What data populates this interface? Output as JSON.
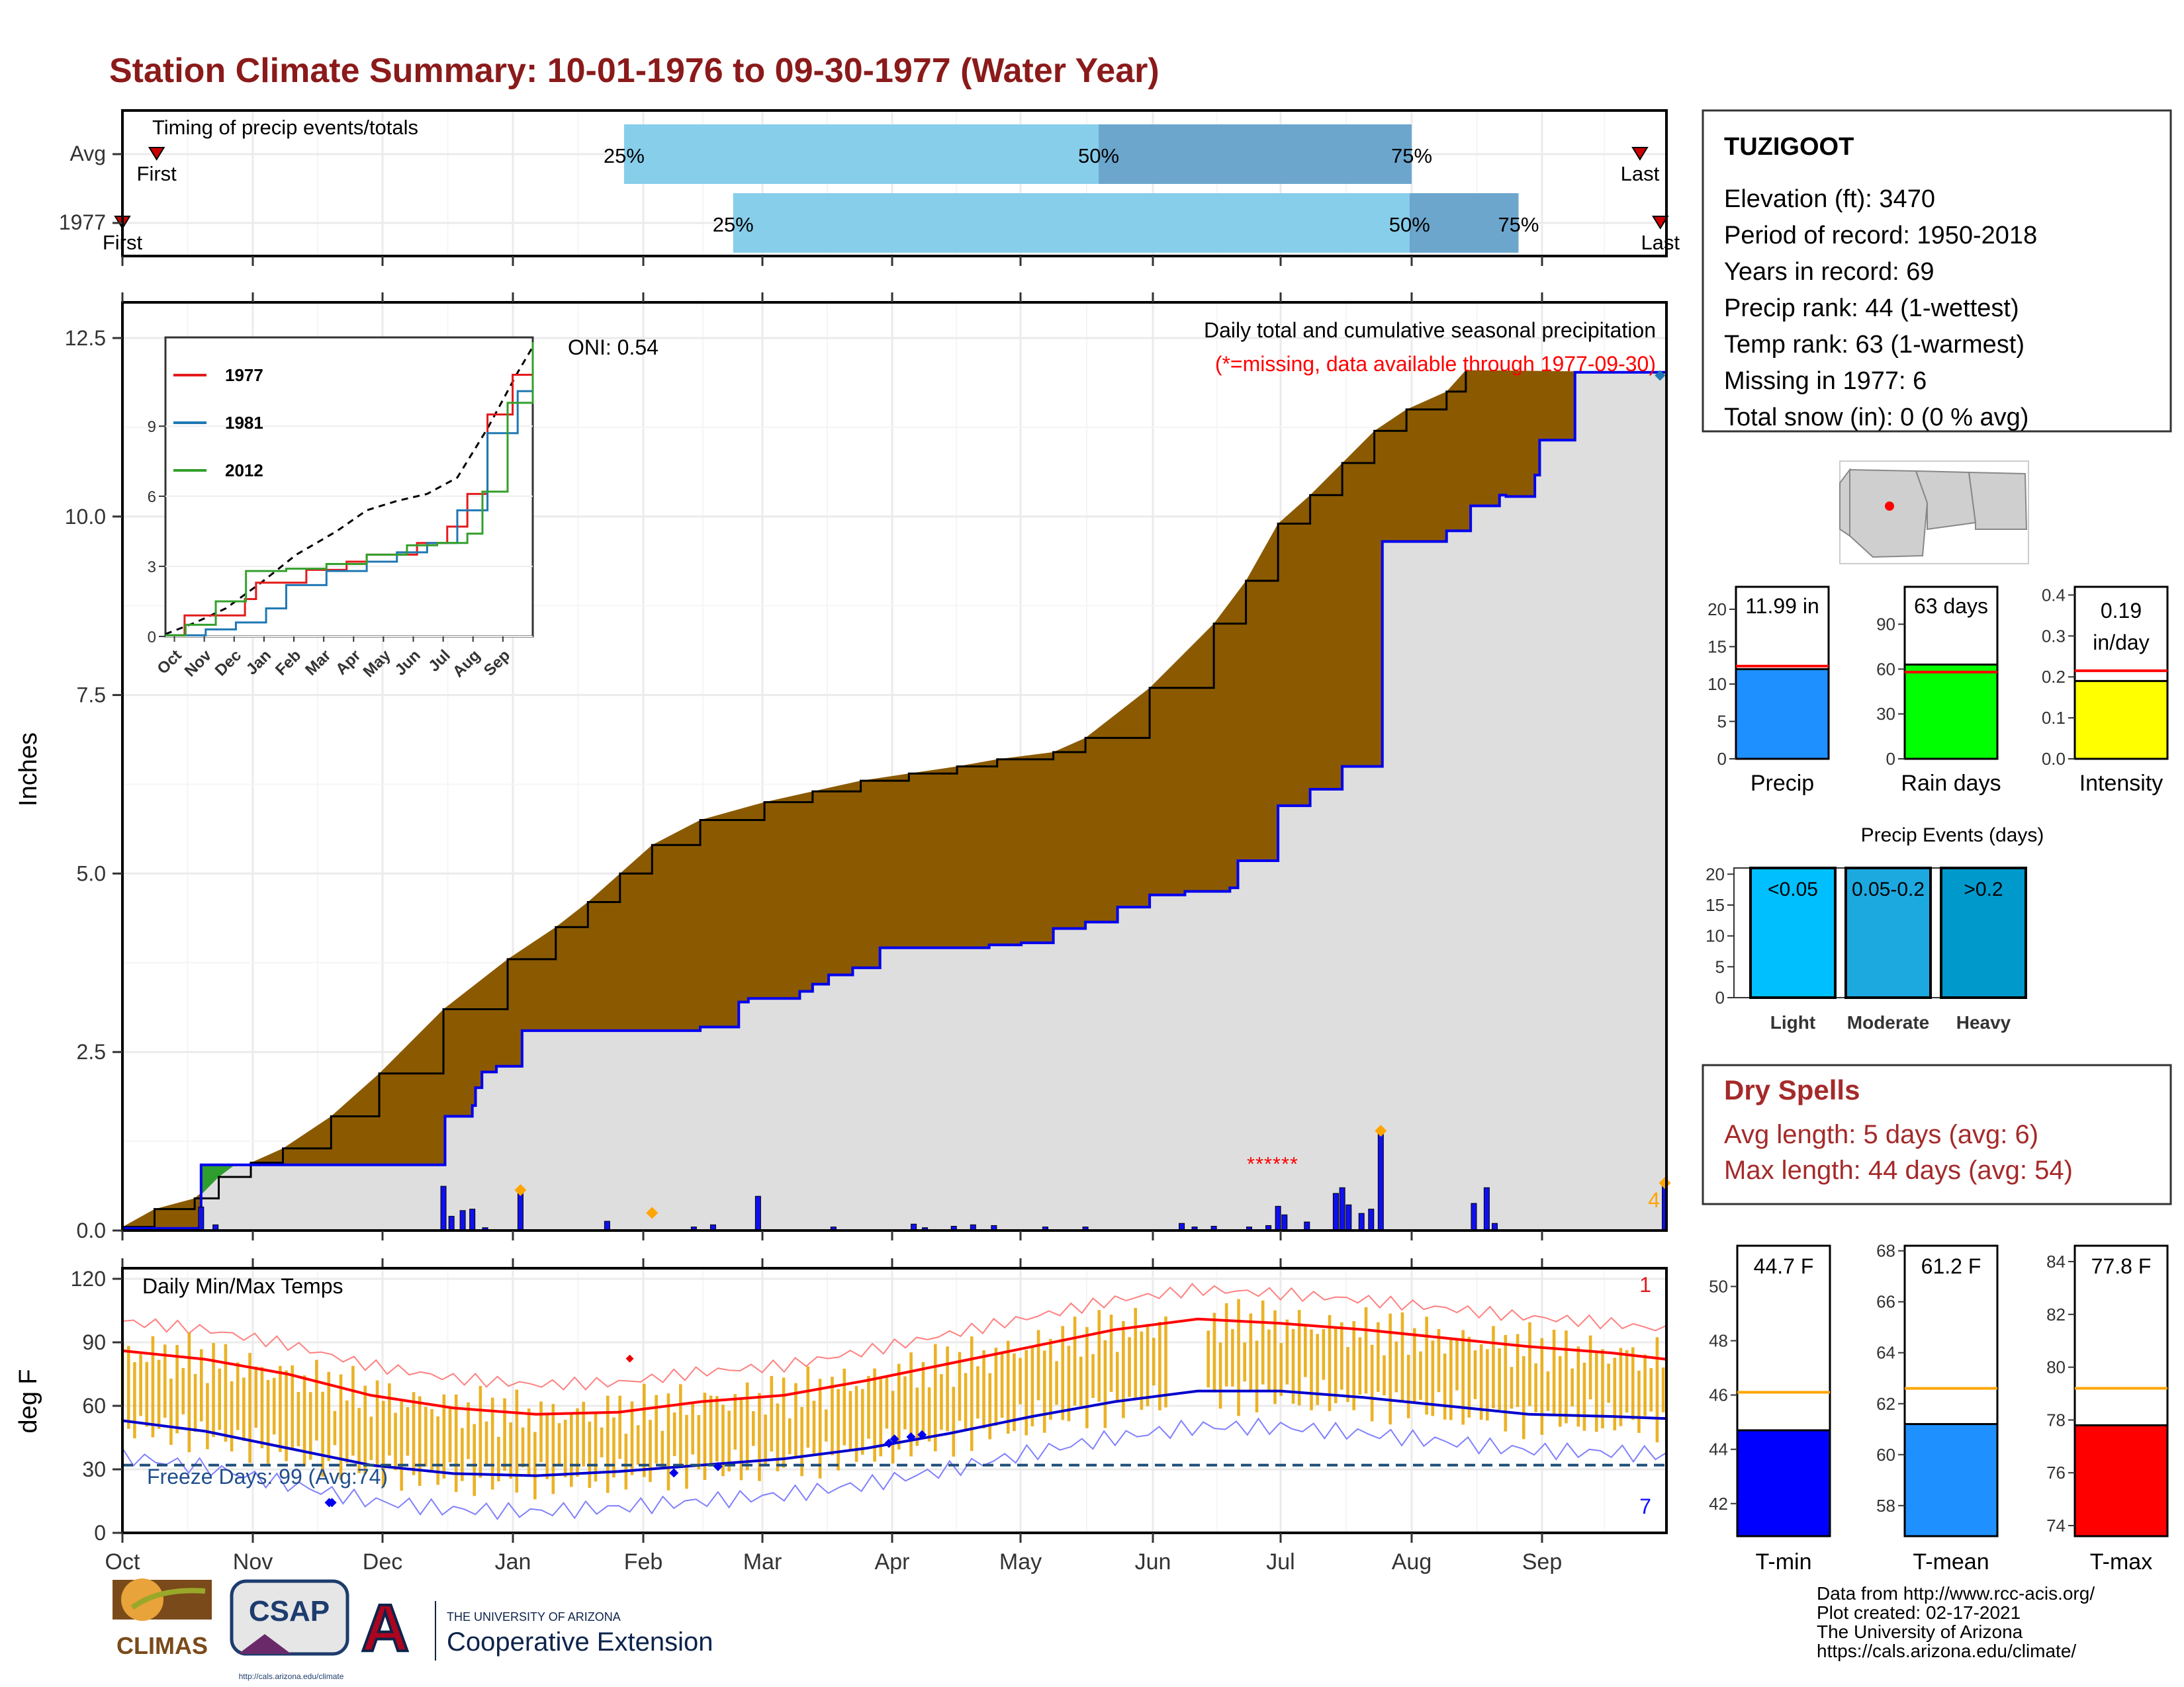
{
  "title": "Station Climate Summary: 10-01-1976 to 09-30-1977 (Water Year)",
  "timing": {
    "label": "Timing of precip events/totals",
    "rows": [
      {
        "name": "Avg",
        "first": "10-09",
        "q25": "01-27",
        "q50": "05-19",
        "q75": "08-01",
        "last": "09-25",
        "first_label": "First",
        "last_label": "Last"
      },
      {
        "name": "1977",
        "first": "10-01",
        "q25": "02-24",
        "q50": "07-31",
        "q75": "08-26",
        "last": "09-30",
        "first_label": "First",
        "last_label": "Last"
      }
    ],
    "pct_labels": [
      "25%",
      "50%",
      "75%"
    ]
  },
  "info": {
    "station": "TUZIGOOT",
    "lines": [
      "Elevation (ft): 3470",
      "Period of record: 1950-2018",
      "Years in record: 69",
      "Precip rank: 44 (1-wettest)",
      "Temp rank: 63 (1-warmest)",
      "Missing in 1977: 6",
      "Total snow (in): 0 (0 % avg)"
    ]
  },
  "dry_spells": {
    "title": "Dry Spells",
    "avg": "Avg length: 5 days (avg: 6)",
    "max": "Max length: 44 days (avg: 54)"
  },
  "footer": {
    "lines": [
      "Data from http://www.rcc-acis.org/",
      "Plot created: 02-17-2021",
      "The University of Arizona",
      "https://cals.arizona.edu/climate/"
    ],
    "logos": {
      "climas": "CLIMAS",
      "csap": "CSAP",
      "csap_url": "http://cals.arizona.edu/climate",
      "ua": "A",
      "ua_line1": "THE UNIVERSITY OF ARIZONA",
      "ua_line2": "Cooperative Extension"
    }
  },
  "chart_data": [
    {
      "type": "area",
      "name": "main-precip",
      "title": "Daily total and cumulative seasonal precipitation",
      "subtitle": "(*=missing, data available through 1977-09-30)",
      "ylabel": "Inches",
      "ylim": [
        0,
        13.0
      ],
      "yticks": [
        "0.0",
        "2.5",
        "5.0",
        "7.5",
        "10.0",
        "12.5"
      ],
      "months": [
        "Oct",
        "Nov",
        "Dec",
        "Jan",
        "Feb",
        "Mar",
        "Apr",
        "May",
        "Jun",
        "Jul",
        "Aug",
        "Sep"
      ],
      "oni": "ONI: 0.54",
      "avg_cumulative": [
        [
          0,
          0.05
        ],
        [
          20,
          0.3
        ],
        [
          45,
          0.45
        ],
        [
          60,
          0.75
        ],
        [
          80,
          0.95
        ],
        [
          100,
          1.15
        ],
        [
          130,
          1.6
        ],
        [
          160,
          2.2
        ],
        [
          200,
          3.1
        ],
        [
          240,
          3.8
        ],
        [
          270,
          4.25
        ],
        [
          290,
          4.6
        ],
        [
          310,
          5.0
        ],
        [
          330,
          5.4
        ],
        [
          360,
          5.75
        ],
        [
          400,
          6.0
        ],
        [
          430,
          6.15
        ],
        [
          460,
          6.3
        ],
        [
          490,
          6.4
        ],
        [
          520,
          6.5
        ],
        [
          545,
          6.6
        ],
        [
          580,
          6.7
        ],
        [
          600,
          6.9
        ],
        [
          640,
          7.6
        ],
        [
          680,
          8.5
        ],
        [
          700,
          9.1
        ],
        [
          720,
          9.9
        ],
        [
          740,
          10.3
        ],
        [
          760,
          10.75
        ],
        [
          780,
          11.2
        ],
        [
          800,
          11.5
        ],
        [
          825,
          11.75
        ],
        [
          837,
          12.05
        ]
      ],
      "obs_cumulative": [
        [
          0,
          0.03
        ],
        [
          48,
          0.08
        ],
        [
          49,
          0.92
        ],
        [
          200,
          0.92
        ],
        [
          201,
          1.6
        ],
        [
          218,
          1.75
        ],
        [
          220,
          2.0
        ],
        [
          224,
          2.22
        ],
        [
          233,
          2.3
        ],
        [
          248,
          2.3
        ],
        [
          249,
          2.8
        ],
        [
          360,
          2.85
        ],
        [
          384,
          3.2
        ],
        [
          390,
          3.25
        ],
        [
          422,
          3.35
        ],
        [
          430,
          3.45
        ],
        [
          440,
          3.58
        ],
        [
          455,
          3.68
        ],
        [
          472,
          3.96
        ],
        [
          530,
          3.96
        ],
        [
          540,
          4.0
        ],
        [
          560,
          4.03
        ],
        [
          580,
          4.23
        ],
        [
          600,
          4.32
        ],
        [
          620,
          4.53
        ],
        [
          640,
          4.7
        ],
        [
          662,
          4.75
        ],
        [
          690,
          4.8
        ],
        [
          695,
          5.18
        ],
        [
          720,
          5.95
        ],
        [
          740,
          6.18
        ],
        [
          760,
          6.5
        ],
        [
          785,
          9.65
        ],
        [
          825,
          9.8
        ],
        [
          840,
          10.15
        ],
        [
          858,
          10.3
        ],
        [
          862,
          10.28
        ],
        [
          880,
          10.58
        ],
        [
          883,
          11.07
        ],
        [
          905,
          12.02
        ],
        [
          962,
          12.02
        ]
      ],
      "daily_bars": [
        [
          49,
          0.33
        ],
        [
          58,
          0.08
        ],
        [
          200,
          0.62
        ],
        [
          205,
          0.2
        ],
        [
          212,
          0.28
        ],
        [
          218,
          0.3
        ],
        [
          226,
          0.04
        ],
        [
          248,
          0.52
        ],
        [
          302,
          0.13
        ],
        [
          356,
          0.05
        ],
        [
          368,
          0.08
        ],
        [
          396,
          0.48
        ],
        [
          443,
          0.05
        ],
        [
          493,
          0.09
        ],
        [
          500,
          0.04
        ],
        [
          518,
          0.06
        ],
        [
          530,
          0.08
        ],
        [
          543,
          0.07
        ],
        [
          575,
          0.05
        ],
        [
          600,
          0.05
        ],
        [
          660,
          0.1
        ],
        [
          668,
          0.05
        ],
        [
          680,
          0.06
        ],
        [
          702,
          0.05
        ],
        [
          714,
          0.07
        ],
        [
          720,
          0.34
        ],
        [
          724,
          0.22
        ],
        [
          738,
          0.12
        ],
        [
          756,
          0.52
        ],
        [
          760,
          0.6
        ],
        [
          764,
          0.36
        ],
        [
          772,
          0.24
        ],
        [
          778,
          0.3
        ],
        [
          784,
          1.35
        ],
        [
          842,
          0.38
        ],
        [
          850,
          0.6
        ],
        [
          855,
          0.1
        ],
        [
          961,
          0.62
        ]
      ],
      "missing_marker": "*"
    },
    {
      "type": "line",
      "name": "inset-cumulative",
      "series": [
        {
          "name": "1977",
          "color": "#e31a1c"
        },
        {
          "name": "1981",
          "color": "#1f78b4"
        },
        {
          "name": "2012",
          "color": "#33a02c"
        }
      ],
      "yticks": [
        "0",
        "3",
        "6",
        "9"
      ],
      "months": [
        "Oct",
        "Nov",
        "Dec",
        "Jan",
        "Feb",
        "Mar",
        "Apr",
        "May",
        "Jun",
        "Jul",
        "Aug",
        "Sep"
      ]
    },
    {
      "type": "line",
      "name": "temperature",
      "title": "Daily Min/Max Temps",
      "ylabel": "deg F",
      "ylim": [
        0,
        120
      ],
      "yticks": [
        "0",
        "30",
        "60",
        "90",
        "120"
      ],
      "months": [
        "Oct",
        "Nov",
        "Dec",
        "Jan",
        "Feb",
        "Mar",
        "Apr",
        "May",
        "Jun",
        "Jul",
        "Aug",
        "Sep"
      ],
      "freeze_label": "Freeze Days: 99 (Avg:74)",
      "record_high_count": "1",
      "record_low_count": "7",
      "avg_high_F": [
        [
          0,
          86
        ],
        [
          30,
          82
        ],
        [
          60,
          75
        ],
        [
          90,
          65
        ],
        [
          120,
          59
        ],
        [
          150,
          56
        ],
        [
          180,
          57
        ],
        [
          210,
          62
        ],
        [
          240,
          65
        ],
        [
          270,
          72
        ],
        [
          300,
          80
        ],
        [
          330,
          88
        ],
        [
          360,
          96
        ],
        [
          390,
          101
        ],
        [
          420,
          99
        ],
        [
          450,
          96
        ],
        [
          480,
          92
        ],
        [
          510,
          88
        ],
        [
          540,
          85
        ],
        [
          560,
          82
        ]
      ],
      "avg_low_F": [
        [
          0,
          53
        ],
        [
          30,
          48
        ],
        [
          60,
          40
        ],
        [
          90,
          32
        ],
        [
          120,
          28
        ],
        [
          150,
          27
        ],
        [
          180,
          29
        ],
        [
          210,
          32
        ],
        [
          240,
          35
        ],
        [
          270,
          40
        ],
        [
          300,
          47
        ],
        [
          330,
          55
        ],
        [
          360,
          62
        ],
        [
          390,
          67
        ],
        [
          420,
          67
        ],
        [
          450,
          64
        ],
        [
          480,
          60
        ],
        [
          510,
          56
        ],
        [
          540,
          55
        ],
        [
          560,
          54
        ]
      ]
    },
    {
      "type": "bar",
      "name": "summary-precip",
      "panels": [
        {
          "name": "Precip",
          "label": "11.99 in",
          "value": 11.99,
          "avg": 12.4,
          "ylim": [
            0,
            23
          ],
          "yticks": [
            "0",
            "5",
            "10",
            "15",
            "20"
          ],
          "color": "#1e90ff"
        },
        {
          "name": "Rain days",
          "label": "63 days",
          "value": 63,
          "avg": 58,
          "ylim": [
            0,
            115
          ],
          "yticks": [
            "0",
            "30",
            "60",
            "90"
          ],
          "color": "#00ff00"
        },
        {
          "name": "Intensity",
          "label": "0.19 in/day",
          "label_line1": "0.19",
          "label_line2": "in/day",
          "value": 0.19,
          "avg": 0.215,
          "ylim": [
            0,
            0.42
          ],
          "yticks": [
            "0.0",
            "0.1",
            "0.2",
            "0.3",
            "0.4"
          ],
          "color": "#ffff00"
        }
      ]
    },
    {
      "type": "bar",
      "name": "precip-events",
      "title": "Precip Events (days)",
      "yticks": [
        "0",
        "5",
        "10",
        "15",
        "20"
      ],
      "ylim": [
        0,
        21
      ],
      "categories": [
        "Light",
        "Moderate",
        "Heavy"
      ],
      "bar_labels": [
        "<0.05",
        "0.05-0.2",
        ">0.2"
      ],
      "values": [
        21,
        21,
        21
      ],
      "colors": [
        "#00bfff",
        "#1ca9e0",
        "#0099cc"
      ]
    },
    {
      "type": "bar",
      "name": "summary-temp",
      "panels": [
        {
          "name": "T-min",
          "label": "44.7 F",
          "value": 44.7,
          "avg": 46.1,
          "ylim": [
            40.8,
            51.5
          ],
          "yticks": [
            "42",
            "44",
            "46",
            "48",
            "50"
          ],
          "color": "#0000ff"
        },
        {
          "name": "T-mean",
          "label": "61.2 F",
          "value": 61.2,
          "avg": 62.6,
          "ylim": [
            56.8,
            68.2
          ],
          "yticks": [
            "58",
            "60",
            "62",
            "64",
            "66",
            "68"
          ],
          "color": "#1e90ff"
        },
        {
          "name": "T-max",
          "label": "77.8 F",
          "value": 77.8,
          "avg": 79.2,
          "ylim": [
            73.6,
            84.6
          ],
          "yticks": [
            "74",
            "76",
            "78",
            "80",
            "82",
            "84"
          ],
          "color": "#ff0000"
        }
      ]
    }
  ]
}
